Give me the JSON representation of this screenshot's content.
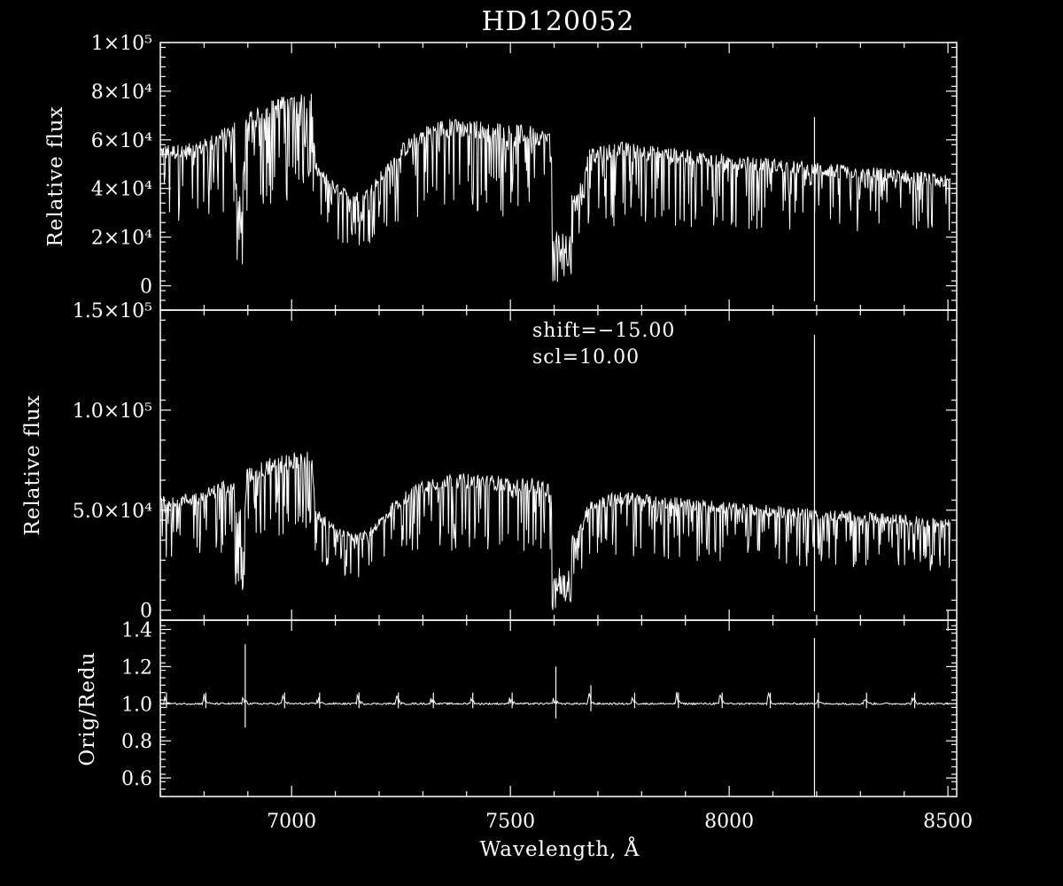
{
  "chart_data": {
    "type": "line",
    "title": "HD120052",
    "x_range": [
      6700,
      8520
    ],
    "xlabel": "Wavelength, Å",
    "x_ticks": [
      7000,
      7500,
      8000,
      8500
    ],
    "x_tick_labels": [
      "7000",
      "7500",
      "8000",
      "8500"
    ],
    "grid": false,
    "panels": [
      {
        "name": "top",
        "ylabel": "Relative flux",
        "ylim": [
          -10000,
          100000
        ],
        "y_ticks": [
          0,
          20000,
          40000,
          60000,
          80000,
          100000
        ],
        "y_tick_labels": [
          "0",
          "2×10⁴",
          "4×10⁴",
          "6×10⁴",
          "8×10⁴",
          "1×10⁵"
        ],
        "continuum": [
          {
            "x": 6700,
            "y": 55000
          },
          {
            "x": 6760,
            "y": 55000
          },
          {
            "x": 6800,
            "y": 57000
          },
          {
            "x": 6850,
            "y": 62000
          },
          {
            "x": 6900,
            "y": 67000
          },
          {
            "x": 6950,
            "y": 72000
          },
          {
            "x": 7000,
            "y": 75000
          },
          {
            "x": 7045,
            "y": 75000
          },
          {
            "x": 7055,
            "y": 48000
          },
          {
            "x": 7100,
            "y": 40000
          },
          {
            "x": 7140,
            "y": 36000
          },
          {
            "x": 7175,
            "y": 38000
          },
          {
            "x": 7250,
            "y": 55000
          },
          {
            "x": 7300,
            "y": 62000
          },
          {
            "x": 7350,
            "y": 65000
          },
          {
            "x": 7450,
            "y": 64000
          },
          {
            "x": 7550,
            "y": 62000
          },
          {
            "x": 7590,
            "y": 60000
          },
          {
            "x": 7600,
            "y": 40000
          },
          {
            "x": 7650,
            "y": 35000
          },
          {
            "x": 7680,
            "y": 53000
          },
          {
            "x": 7750,
            "y": 56000
          },
          {
            "x": 8000,
            "y": 51000
          },
          {
            "x": 8250,
            "y": 47000
          },
          {
            "x": 8400,
            "y": 45000
          },
          {
            "x": 8500,
            "y": 43000
          }
        ]
      },
      {
        "name": "middle",
        "ylabel": "Relative flux",
        "ylim": [
          -5000,
          150000
        ],
        "y_ticks": [
          0,
          50000,
          100000,
          150000
        ],
        "y_tick_labels": [
          "0",
          "5.0×10⁴",
          "1.0×10⁵",
          "1.5×10⁵"
        ],
        "annotations": [
          "shift=−15.00",
          "scl=10.00"
        ],
        "continuum": [
          {
            "x": 6700,
            "y": 55000
          },
          {
            "x": 6760,
            "y": 55000
          },
          {
            "x": 6800,
            "y": 57000
          },
          {
            "x": 6850,
            "y": 62000
          },
          {
            "x": 6900,
            "y": 67000
          },
          {
            "x": 6950,
            "y": 72000
          },
          {
            "x": 7000,
            "y": 75000
          },
          {
            "x": 7045,
            "y": 75000
          },
          {
            "x": 7055,
            "y": 48000
          },
          {
            "x": 7100,
            "y": 40000
          },
          {
            "x": 7140,
            "y": 36000
          },
          {
            "x": 7175,
            "y": 38000
          },
          {
            "x": 7250,
            "y": 55000
          },
          {
            "x": 7300,
            "y": 62000
          },
          {
            "x": 7350,
            "y": 65000
          },
          {
            "x": 7450,
            "y": 64000
          },
          {
            "x": 7550,
            "y": 62000
          },
          {
            "x": 7590,
            "y": 60000
          },
          {
            "x": 7600,
            "y": 40000
          },
          {
            "x": 7650,
            "y": 35000
          },
          {
            "x": 7680,
            "y": 53000
          },
          {
            "x": 7750,
            "y": 56000
          },
          {
            "x": 8000,
            "y": 51000
          },
          {
            "x": 8250,
            "y": 47000
          },
          {
            "x": 8400,
            "y": 45000
          },
          {
            "x": 8500,
            "y": 43000
          }
        ]
      },
      {
        "name": "bottom",
        "ylabel": "Orig/Redu",
        "ylim": [
          0.5,
          1.45
        ],
        "y_ticks": [
          0.6,
          0.8,
          1.0,
          1.2,
          1.4
        ],
        "y_tick_labels": [
          "0.6",
          "0.8",
          "1.0",
          "1.2",
          "1.4"
        ],
        "baseline": 1.0,
        "spike_x": [
          6710,
          6800,
          6890,
          6980,
          7060,
          7150,
          7240,
          7320,
          7410,
          7500,
          7600,
          7680,
          7780,
          7880,
          7980,
          8090,
          8200,
          8310,
          8420
        ]
      }
    ],
    "marker_x": 8195
  }
}
